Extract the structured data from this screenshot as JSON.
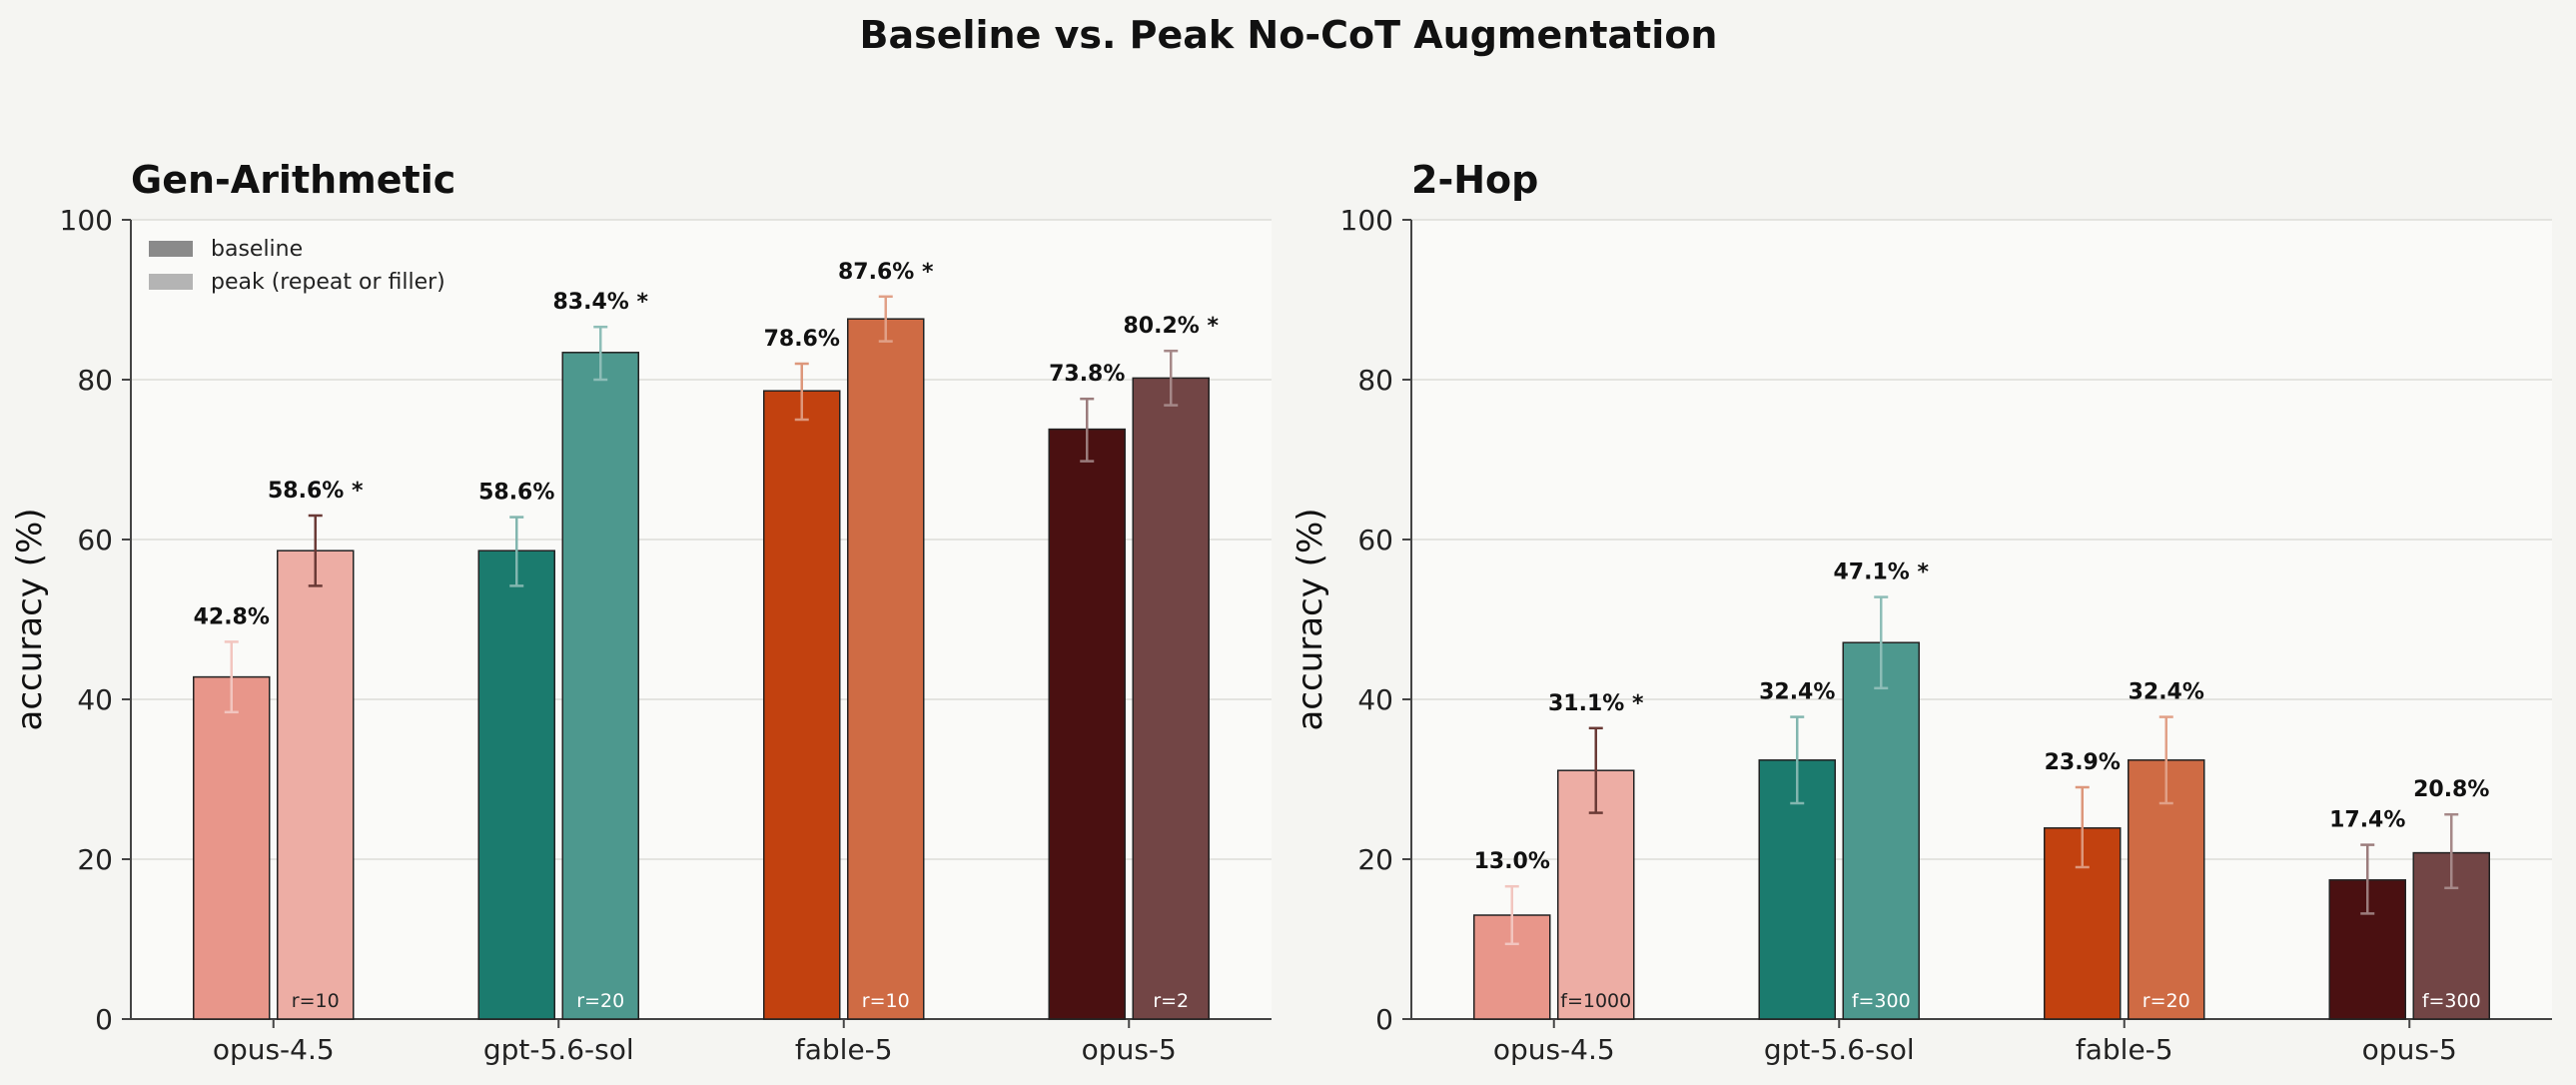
{
  "figure_title": "Baseline vs. Peak No-CoT Augmentation",
  "legend": {
    "baseline_label": "baseline",
    "peak_label": "peak (repeat or filler)"
  },
  "colors": {
    "page_bg": "#f5f5f2",
    "plot_bg": "#fafaf8",
    "models": {
      "opus-4.5": "#e8968a",
      "gpt-5.6-sol": "#1b7b6e",
      "fable-5": "#c2410f",
      "opus-5": "#4a1011"
    }
  },
  "chart_data": [
    {
      "type": "bar",
      "title": "Gen-Arithmetic",
      "ylabel": "accuracy (%)",
      "ylim": [
        0,
        100
      ],
      "yticks": [
        0,
        20,
        40,
        60,
        80,
        100
      ],
      "grid": true,
      "legend_position": "top-left",
      "categories": [
        "opus-4.5",
        "gpt-5.6-sol",
        "fable-5",
        "opus-5"
      ],
      "series": [
        {
          "name": "baseline",
          "values": [
            42.8,
            58.6,
            78.6,
            73.8
          ],
          "error": [
            [
              38.4,
              47.2
            ],
            [
              54.2,
              62.8
            ],
            [
              75.0,
              82.0
            ],
            [
              69.8,
              77.6
            ]
          ],
          "labels": [
            "42.8%",
            "58.6%",
            "78.6%",
            "73.8%"
          ]
        },
        {
          "name": "peak (repeat or filler)",
          "values": [
            58.6,
            83.4,
            87.6,
            80.2
          ],
          "error": [
            [
              54.2,
              63.0
            ],
            [
              80.0,
              86.6
            ],
            [
              84.8,
              90.4
            ],
            [
              76.8,
              83.6
            ]
          ],
          "labels": [
            "58.6% *",
            "83.4% *",
            "87.6% *",
            "80.2% *"
          ],
          "setting": [
            "r=10",
            "r=20",
            "r=10",
            "r=2"
          ]
        }
      ]
    },
    {
      "type": "bar",
      "title": "2-Hop",
      "ylabel": "accuracy (%)",
      "ylim": [
        0,
        100
      ],
      "yticks": [
        0,
        20,
        40,
        60,
        80,
        100
      ],
      "grid": true,
      "categories": [
        "opus-4.5",
        "gpt-5.6-sol",
        "fable-5",
        "opus-5"
      ],
      "series": [
        {
          "name": "baseline",
          "values": [
            13.0,
            32.4,
            23.9,
            17.4
          ],
          "error": [
            [
              9.4,
              16.6
            ],
            [
              27.0,
              37.8
            ],
            [
              19.0,
              29.0
            ],
            [
              13.2,
              21.8
            ]
          ],
          "labels": [
            "13.0%",
            "32.4%",
            "23.9%",
            "17.4%"
          ]
        },
        {
          "name": "peak (repeat or filler)",
          "values": [
            31.1,
            47.1,
            32.4,
            20.8
          ],
          "error": [
            [
              25.8,
              36.4
            ],
            [
              41.4,
              52.8
            ],
            [
              27.0,
              37.8
            ],
            [
              16.4,
              25.6
            ]
          ],
          "labels": [
            "31.1% *",
            "47.1% *",
            "32.4%",
            "20.8%"
          ],
          "setting": [
            "f=1000",
            "f=300",
            "r=20",
            "f=300"
          ]
        }
      ]
    }
  ]
}
